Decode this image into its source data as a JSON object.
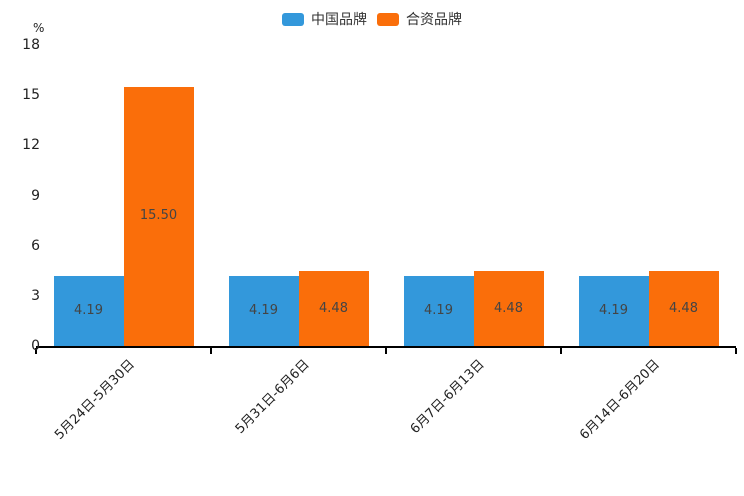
{
  "chart_data": {
    "type": "bar",
    "title": "",
    "categories": [
      "5月24日-5月30日",
      "5月31日-6月6日",
      "6月7日-6月13日",
      "6月14日-6月20日"
    ],
    "series": [
      {
        "name": "中国品牌",
        "color": "#3398db",
        "values": [
          4.19,
          4.19,
          4.19,
          4.19
        ],
        "labels": [
          "4.19",
          "4.19",
          "4.19",
          "4.19"
        ]
      },
      {
        "name": "合资品牌",
        "color": "#fa6e0a",
        "values": [
          15.5,
          4.48,
          4.48,
          4.48
        ],
        "labels": [
          "15.50",
          "4.48",
          "4.48",
          "4.48"
        ]
      }
    ],
    "xlabel": "",
    "ylabel": "%",
    "ylim": [
      0,
      18
    ],
    "yticks": [
      0,
      3,
      6,
      9,
      12,
      15,
      18
    ],
    "grid": false,
    "legend_position": "top-center",
    "bar_label_position": "inside-center",
    "x_tick_rotation_deg": 45,
    "axis_color": "#000000",
    "bar_label_color": "#444444",
    "tick_label_color": "#222222"
  }
}
